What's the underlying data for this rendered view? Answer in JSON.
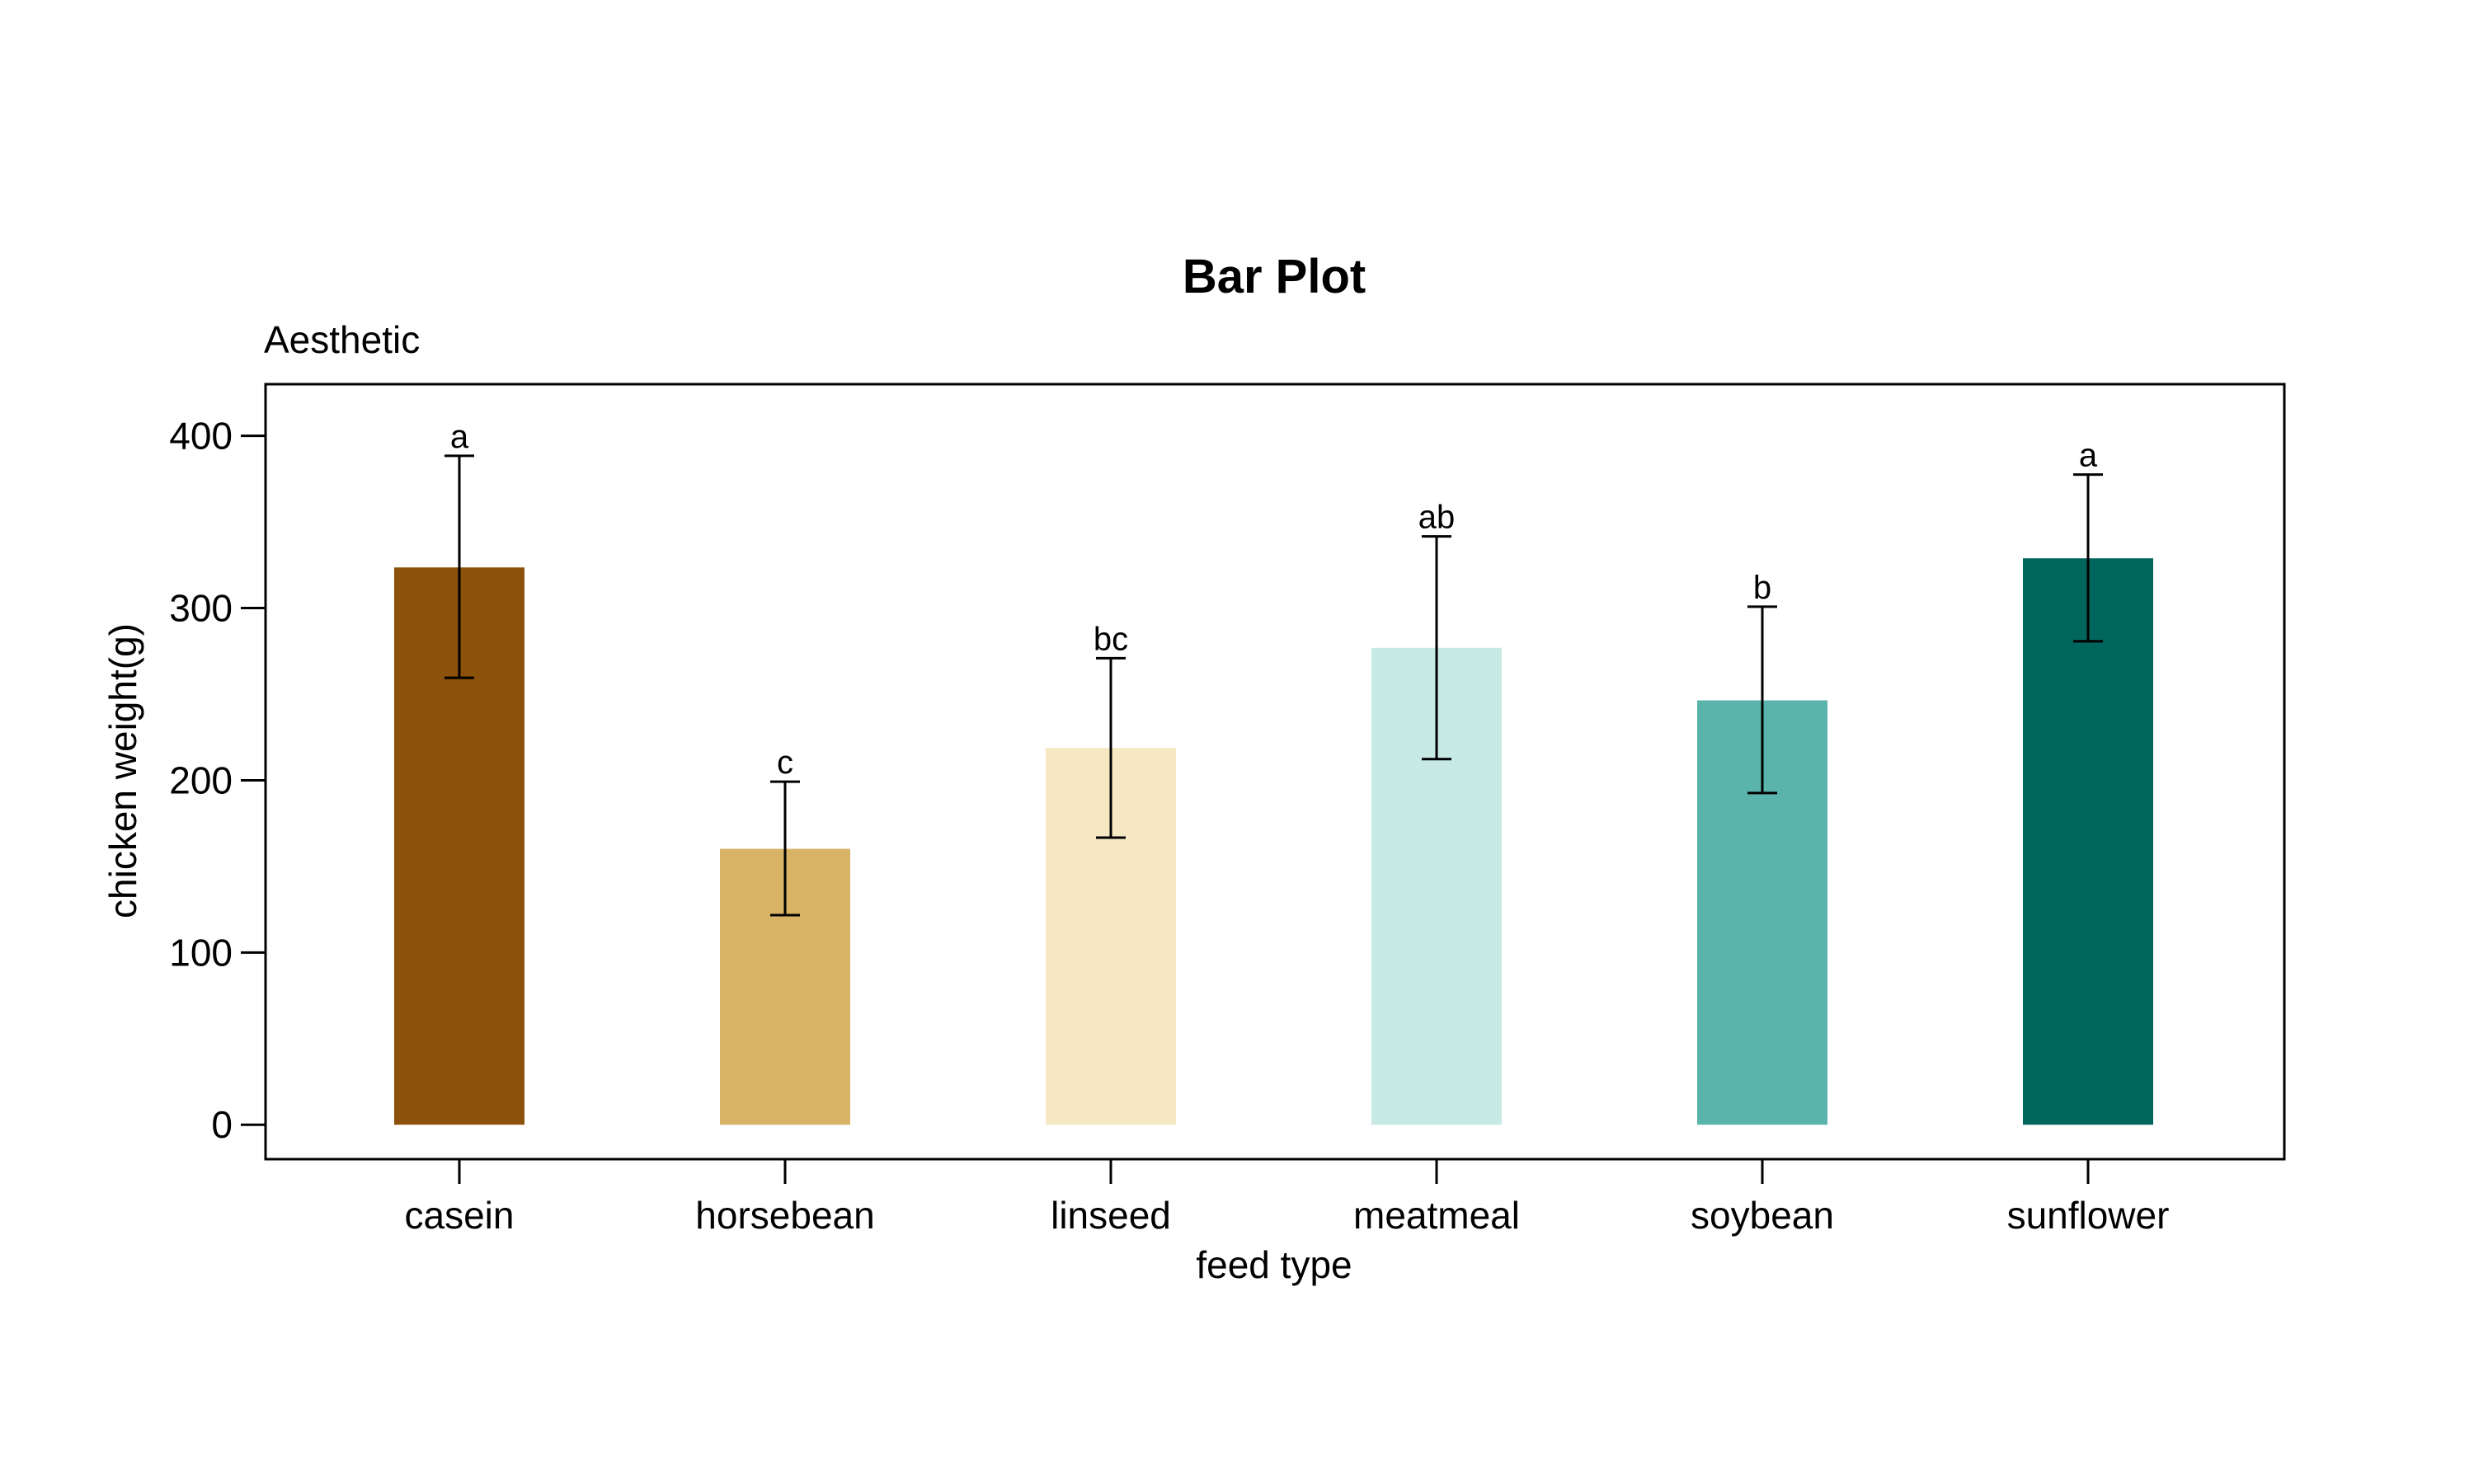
{
  "chart_data": {
    "type": "bar",
    "title": "Bar Plot",
    "subtitle": "Aesthetic",
    "xlabel": "feed type",
    "ylabel": "chicken weight(g)",
    "ylim": [
      -20,
      430
    ],
    "yticks": [
      0,
      100,
      200,
      300,
      400
    ],
    "grid": false,
    "legend": "none",
    "categories": [
      "casein",
      "horsebean",
      "linseed",
      "meatmeal",
      "soybean",
      "sunflower"
    ],
    "values": [
      323.6,
      160.2,
      218.8,
      276.9,
      246.4,
      328.9
    ],
    "error_low": [
      259.5,
      121.7,
      166.7,
      212.3,
      192.6,
      280.7
    ],
    "error_high": [
      388.4,
      199.2,
      270.9,
      341.6,
      300.8,
      377.5
    ],
    "significance_labels": [
      "a",
      "c",
      "bc",
      "ab",
      "b",
      "a"
    ],
    "colors": [
      "#8c510a",
      "#d8b365",
      "#f6e8c3",
      "#c7eae5",
      "#5ab4ac",
      "#01665e"
    ]
  }
}
